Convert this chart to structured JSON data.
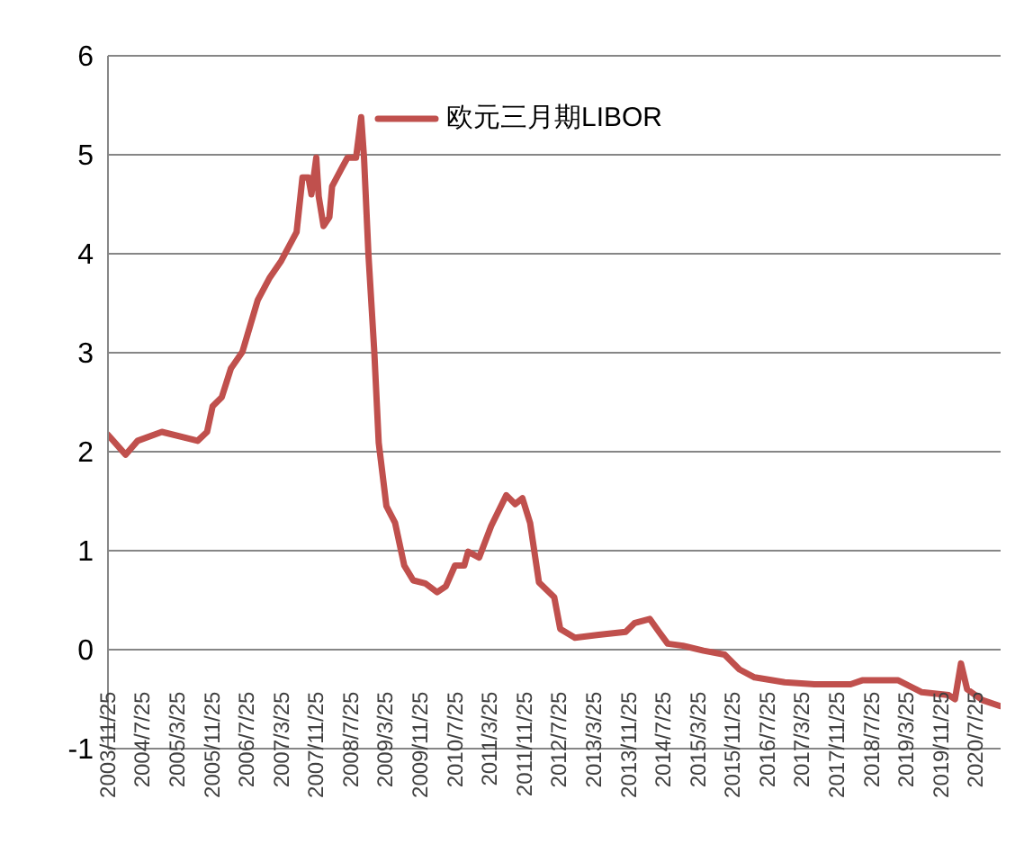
{
  "chart_data": {
    "type": "line",
    "legend": "top",
    "grid": "y",
    "marker": "none",
    "line_style": "solid",
    "xlim": [
      "2003-11-25",
      "2021-01-15"
    ],
    "xticks": [
      {
        "value": "2003-11-25",
        "label": "2003/11/25"
      },
      {
        "value": "2004-07-25",
        "label": "2004/7/25"
      },
      {
        "value": "2005-03-25",
        "label": "2005/3/25"
      },
      {
        "value": "2005-11-25",
        "label": "2005/11/25"
      },
      {
        "value": "2006-07-25",
        "label": "2006/7/25"
      },
      {
        "value": "2007-03-25",
        "label": "2007/3/25"
      },
      {
        "value": "2007-11-25",
        "label": "2007/11/25"
      },
      {
        "value": "2008-07-25",
        "label": "2008/7/25"
      },
      {
        "value": "2009-03-25",
        "label": "2009/3/25"
      },
      {
        "value": "2009-11-25",
        "label": "2009/11/25"
      },
      {
        "value": "2010-07-25",
        "label": "2010/7/25"
      },
      {
        "value": "2011-03-25",
        "label": "2011/3/25"
      },
      {
        "value": "2011-11-25",
        "label": "2011/11/25"
      },
      {
        "value": "2012-07-25",
        "label": "2012/7/25"
      },
      {
        "value": "2013-03-25",
        "label": "2013/3/25"
      },
      {
        "value": "2013-11-25",
        "label": "2013/11/25"
      },
      {
        "value": "2014-07-25",
        "label": "2014/7/25"
      },
      {
        "value": "2015-03-25",
        "label": "2015/3/25"
      },
      {
        "value": "2015-11-25",
        "label": "2015/11/25"
      },
      {
        "value": "2016-07-25",
        "label": "2016/7/25"
      },
      {
        "value": "2017-03-25",
        "label": "2017/3/25"
      },
      {
        "value": "2017-11-25",
        "label": "2017/11/25"
      },
      {
        "value": "2018-07-25",
        "label": "2018/7/25"
      },
      {
        "value": "2019-03-25",
        "label": "2019/3/25"
      },
      {
        "value": "2019-11-25",
        "label": "2019/11/25"
      },
      {
        "value": "2020-07-25",
        "label": "2020/7/25"
      }
    ],
    "ylim": [
      -1,
      6
    ],
    "yticks": [
      -1,
      0,
      1,
      2,
      3,
      4,
      5,
      6
    ],
    "x": [
      "2003-11-25",
      "2004-03-28",
      "2004-06-20",
      "2004-12-07",
      "2005-08-15",
      "2005-10-20",
      "2005-11-28",
      "2006-01-31",
      "2006-04-05",
      "2006-06-25",
      "2006-10-10",
      "2007-01-03",
      "2007-03-25",
      "2007-07-10",
      "2007-08-20",
      "2007-10-01",
      "2007-10-22",
      "2007-11-25",
      "2007-12-12",
      "2008-01-15",
      "2008-02-25",
      "2008-03-15",
      "2008-05-20",
      "2008-07-01",
      "2008-08-30",
      "2008-10-05",
      "2008-10-25",
      "2008-11-25",
      "2009-01-05",
      "2009-02-05",
      "2009-03-31",
      "2009-05-31",
      "2009-08-03",
      "2009-10-05",
      "2009-12-28",
      "2010-03-22",
      "2010-05-22",
      "2010-07-25",
      "2010-09-28",
      "2010-10-25",
      "2011-01-10",
      "2011-04-05",
      "2011-07-20",
      "2011-09-20",
      "2011-11-10",
      "2012-01-03",
      "2012-03-05",
      "2012-06-20",
      "2012-08-01",
      "2012-11-12",
      "2013-04-28",
      "2013-11-03",
      "2014-01-06",
      "2014-04-22",
      "2014-06-25",
      "2014-08-25",
      "2014-12-10",
      "2015-05-03",
      "2015-09-28",
      "2016-01-10",
      "2016-04-25",
      "2016-11-22",
      "2017-06-20",
      "2018-02-28",
      "2018-05-20",
      "2019-01-28",
      "2019-07-12",
      "2020-01-18",
      "2020-03-01",
      "2020-04-12",
      "2020-05-25",
      "2020-09-10",
      "2021-01-12"
    ],
    "series": [
      {
        "name": "欧元三月期LIBOR",
        "color": "#c0504d",
        "values": [
          2.17,
          1.97,
          2.11,
          2.2,
          2.11,
          2.2,
          2.46,
          2.55,
          2.84,
          3.01,
          3.53,
          3.76,
          3.93,
          4.22,
          4.77,
          4.77,
          4.6,
          4.97,
          4.58,
          4.28,
          4.37,
          4.68,
          4.86,
          4.97,
          4.97,
          5.38,
          4.97,
          3.99,
          3.01,
          2.09,
          1.45,
          1.28,
          0.85,
          0.7,
          0.67,
          0.58,
          0.64,
          0.85,
          0.85,
          0.99,
          0.93,
          1.25,
          1.56,
          1.47,
          1.53,
          1.28,
          0.68,
          0.53,
          0.21,
          0.12,
          0.15,
          0.18,
          0.27,
          0.31,
          0.18,
          0.06,
          0.04,
          -0.01,
          -0.05,
          -0.2,
          -0.28,
          -0.33,
          -0.35,
          -0.35,
          -0.31,
          -0.31,
          -0.43,
          -0.46,
          -0.5,
          -0.14,
          -0.4,
          -0.51,
          -0.57
        ]
      }
    ]
  }
}
